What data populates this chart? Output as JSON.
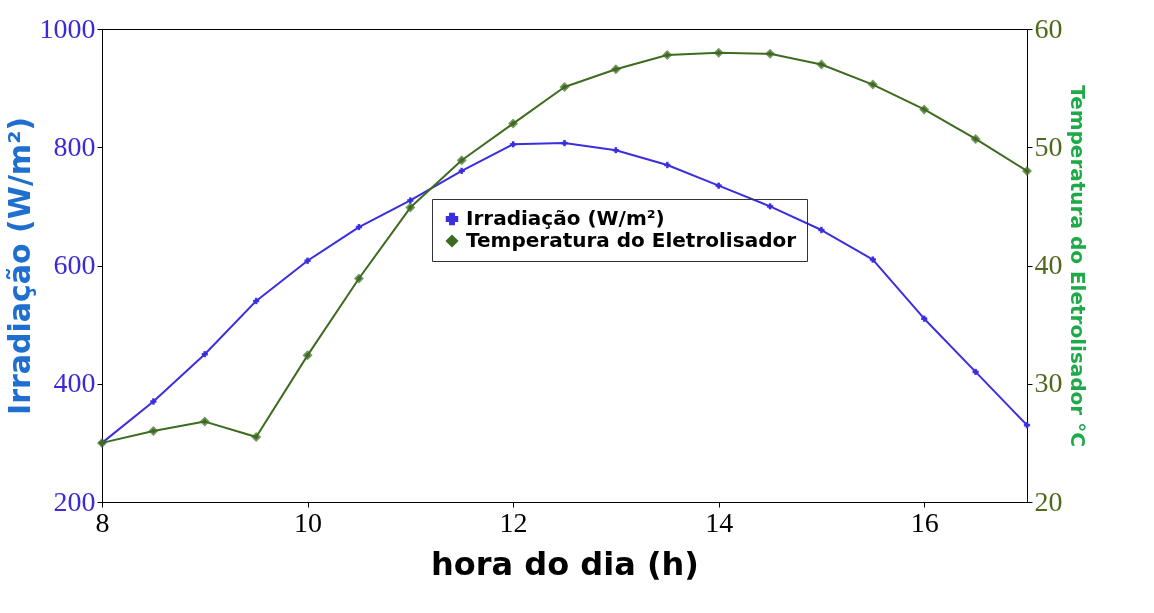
{
  "chart_data": {
    "type": "line",
    "xlabel": "hora do dia (h)",
    "ylabel": "Irradiação (W/m²)",
    "y2label": "Temperatura do Eletrolisador °C",
    "x": [
      8,
      8.5,
      9,
      9.5,
      10,
      10.5,
      11,
      11.5,
      12,
      12.5,
      13,
      13.5,
      14,
      14.5,
      15,
      15.5,
      16,
      16.5,
      17
    ],
    "series": [
      {
        "name": "Irradiação (W/m²)",
        "color": "#3b2ee0",
        "marker": "cross",
        "values": [
          300,
          370,
          450,
          540,
          608,
          665,
          710,
          760,
          805,
          807,
          795,
          770,
          735,
          700,
          660,
          610,
          510,
          420,
          330
        ]
      },
      {
        "name": "Temperatura do Eletrolisador",
        "color": "#3d6b1f",
        "marker": "diamond",
        "axis": "y2",
        "values": [
          25,
          26,
          26.8,
          25.5,
          32.4,
          38.9,
          44.9,
          48.9,
          52,
          55.1,
          56.6,
          57.8,
          58,
          57.9,
          57,
          55.3,
          53.2,
          50.7,
          48
        ]
      }
    ],
    "xlim": [
      8,
      17
    ],
    "xticks": [
      8,
      10,
      12,
      14,
      16
    ],
    "ylim": [
      200,
      1000
    ],
    "yticks": [
      200,
      400,
      600,
      800,
      1000
    ],
    "y2lim": [
      20,
      60
    ],
    "y2ticks": [
      20,
      30,
      40,
      50,
      60
    ],
    "grid": false,
    "legend": "center"
  }
}
